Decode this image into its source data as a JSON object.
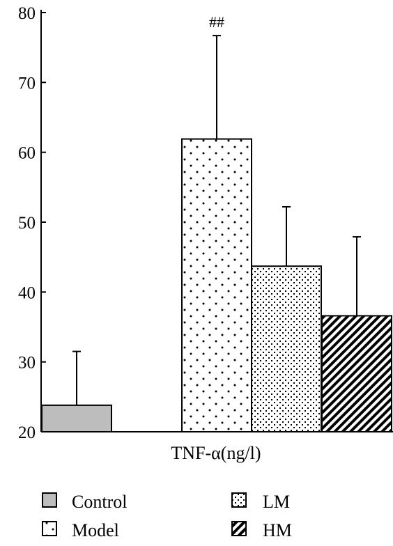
{
  "chart_data": {
    "type": "bar",
    "categories": [
      "TNF-α(ng/l)"
    ],
    "xlabel": "TNF-α(ng/l)",
    "ylim": [
      20,
      80
    ],
    "yticks": [
      20,
      30,
      40,
      50,
      60,
      70,
      80
    ],
    "grid": false,
    "legend_position": "bottom",
    "series": [
      {
        "name": "Control",
        "value": 23.8,
        "error": 7.7,
        "pattern": "gray-fill",
        "color": "#bdbdbd",
        "annotation": ""
      },
      {
        "name": "Model",
        "value": 61.9,
        "error": 14.8,
        "pattern": "sparse-dots",
        "color": "#000000",
        "annotation": "##"
      },
      {
        "name": "LM",
        "value": 43.7,
        "error": 8.5,
        "pattern": "dense-dots",
        "color": "#000000",
        "annotation": ""
      },
      {
        "name": "HM",
        "value": 36.6,
        "error": 11.3,
        "pattern": "diagonal-hatch",
        "color": "#000000",
        "annotation": ""
      }
    ]
  }
}
